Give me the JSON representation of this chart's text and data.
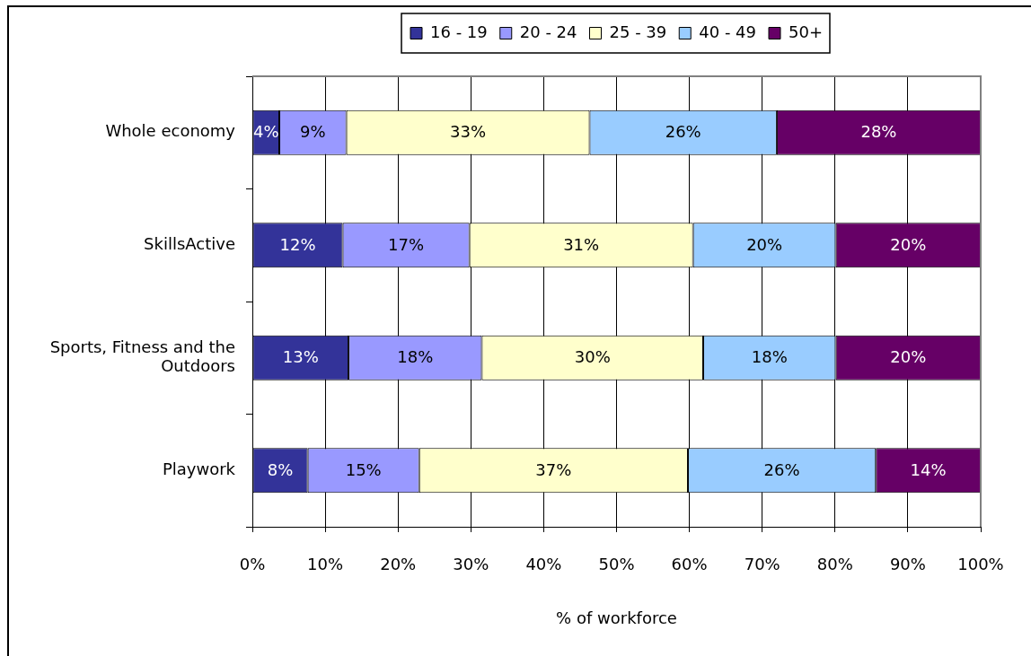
{
  "chart_data": {
    "type": "bar",
    "orientation": "horizontal",
    "stacked": true,
    "categories": [
      "Whole economy",
      "SkillsActive",
      "Sports, Fitness and the Outdoors",
      "Playwork"
    ],
    "series": [
      {
        "name": "16 - 19",
        "color": "#333399",
        "values": [
          3.7,
          12.4,
          13.2,
          7.6
        ],
        "value_labels": [
          "4%",
          "12%",
          "13%",
          "8%"
        ]
      },
      {
        "name": "20 - 24",
        "color": "#9999ff",
        "values": [
          9.2,
          17.4,
          18.3,
          15.3
        ],
        "value_labels": [
          "9%",
          "17%",
          "18%",
          "15%"
        ]
      },
      {
        "name": "25 - 39",
        "color": "#ffffcc",
        "values": [
          33.4,
          30.7,
          30.4,
          36.9
        ],
        "value_labels": [
          "33%",
          "31%",
          "30%",
          "37%"
        ]
      },
      {
        "name": "40 - 49",
        "color": "#99ccff",
        "values": [
          25.7,
          19.6,
          18.2,
          25.8
        ],
        "value_labels": [
          "26%",
          "20%",
          "18%",
          "26%"
        ]
      },
      {
        "name": "50+",
        "color": "#660066",
        "values": [
          28.0,
          19.9,
          19.9,
          14.4
        ],
        "value_labels": [
          "28%",
          "20%",
          "20%",
          "14%"
        ]
      }
    ],
    "xlabel": "% of workforce",
    "xlim": [
      0,
      100
    ],
    "xticks": [
      {
        "value": 0,
        "label": "0%"
      },
      {
        "value": 10,
        "label": "10%"
      },
      {
        "value": 20,
        "label": "20%"
      },
      {
        "value": 30,
        "label": "30%"
      },
      {
        "value": 40,
        "label": "40%"
      },
      {
        "value": 50,
        "label": "50%"
      },
      {
        "value": 60,
        "label": "60%"
      },
      {
        "value": 70,
        "label": "70%"
      },
      {
        "value": 80,
        "label": "80%"
      },
      {
        "value": 90,
        "label": "90%"
      },
      {
        "value": 100,
        "label": "100%"
      }
    ],
    "grid": "x",
    "legend": "top"
  }
}
